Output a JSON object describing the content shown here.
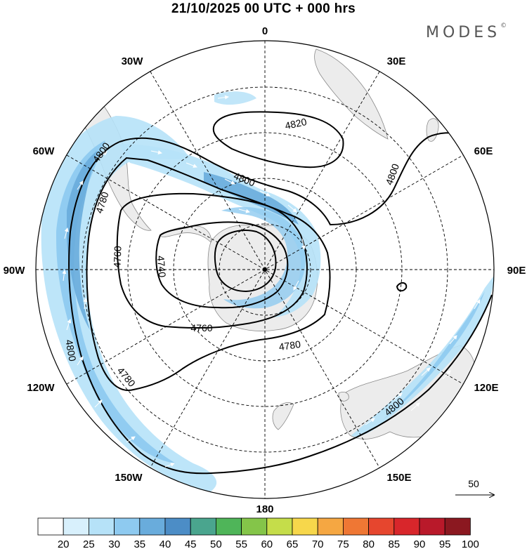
{
  "title": "21/10/2025  00 UTC  + 000 hrs",
  "brand": "MODES",
  "brand_mark": "©",
  "longitude_labels": [
    {
      "text": "0",
      "lon": 0
    },
    {
      "text": "30E",
      "lon": 30
    },
    {
      "text": "60E",
      "lon": 60
    },
    {
      "text": "90E",
      "lon": 90
    },
    {
      "text": "120E",
      "lon": 120
    },
    {
      "text": "150E",
      "lon": 150
    },
    {
      "text": "180",
      "lon": 180
    },
    {
      "text": "150W",
      "lon": -150
    },
    {
      "text": "120W",
      "lon": -120
    },
    {
      "text": "90W",
      "lon": -90
    },
    {
      "text": "60W",
      "lon": -60
    },
    {
      "text": "30W",
      "lon": -30
    }
  ],
  "contour_labels": [
    "4820",
    "4800",
    "4800",
    "4800",
    "4780",
    "4760",
    "4740",
    "4760",
    "4780",
    "4780",
    "4800",
    "4800"
  ],
  "vector_reference": {
    "label": "50"
  },
  "colorbar": {
    "labels": [
      "20",
      "25",
      "30",
      "35",
      "40",
      "45",
      "50",
      "55",
      "60",
      "65",
      "70",
      "75",
      "80",
      "85",
      "90",
      "95",
      "100"
    ],
    "colors": [
      "#ffffff",
      "#d8f0fc",
      "#b6e2f8",
      "#8ecaf0",
      "#69acdc",
      "#4c8dc6",
      "#4aa58e",
      "#4fb559",
      "#84c549",
      "#c5dd4a",
      "#f7d74b",
      "#f5a742",
      "#ef7734",
      "#e6462e",
      "#d8262b",
      "#b9192a",
      "#8b1820"
    ]
  },
  "colors": {
    "land": "#ececec",
    "contour": "#000000",
    "grid": "#000000"
  }
}
